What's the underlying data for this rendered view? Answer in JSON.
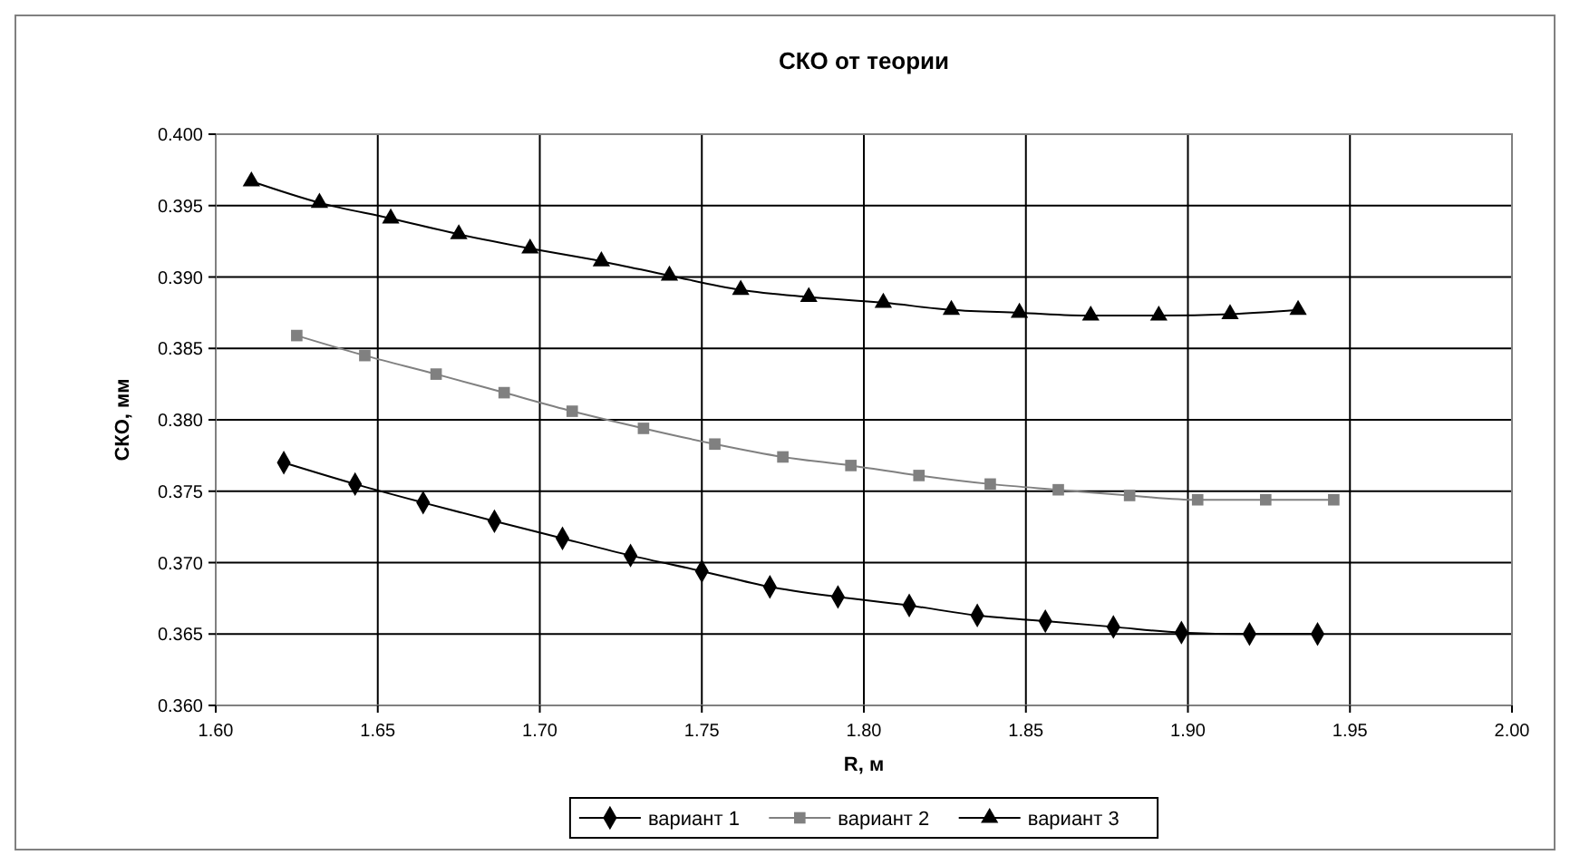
{
  "chart_data": {
    "type": "line",
    "title": "СКО от теории",
    "xlabel": "R, м",
    "ylabel": "СКО, мм",
    "xlim": [
      1.6,
      2.0
    ],
    "xticks": [
      {
        "value": 1.6,
        "label": "1.60"
      },
      {
        "value": 1.65,
        "label": "1.65"
      },
      {
        "value": 1.7,
        "label": "1.70"
      },
      {
        "value": 1.75,
        "label": "1.75"
      },
      {
        "value": 1.8,
        "label": "1.80"
      },
      {
        "value": 1.85,
        "label": "1.85"
      },
      {
        "value": 1.9,
        "label": "1.90"
      },
      {
        "value": 1.95,
        "label": "1.95"
      },
      {
        "value": 2.0,
        "label": "2.00"
      }
    ],
    "ylim": [
      0.36,
      0.4
    ],
    "yticks": [
      {
        "value": 0.36,
        "label": "0.360"
      },
      {
        "value": 0.365,
        "label": "0.365"
      },
      {
        "value": 0.37,
        "label": "0.370"
      },
      {
        "value": 0.375,
        "label": "0.375"
      },
      {
        "value": 0.38,
        "label": "0.380"
      },
      {
        "value": 0.385,
        "label": "0.385"
      },
      {
        "value": 0.39,
        "label": "0.390"
      },
      {
        "value": 0.395,
        "label": "0.395"
      },
      {
        "value": 0.4,
        "label": "0.400"
      }
    ],
    "grid": true,
    "legend": "bottom",
    "line_style": "solid",
    "series": [
      {
        "name": "вариант 1",
        "color": "#000000",
        "marker": "diamond",
        "x": [
          1.621,
          1.643,
          1.664,
          1.686,
          1.707,
          1.728,
          1.75,
          1.771,
          1.792,
          1.814,
          1.835,
          1.856,
          1.877,
          1.898,
          1.919,
          1.94
        ],
        "values": [
          0.377,
          0.3755,
          0.3742,
          0.3729,
          0.3717,
          0.3705,
          0.3694,
          0.3683,
          0.3676,
          0.367,
          0.3663,
          0.3659,
          0.3655,
          0.3651,
          0.365,
          0.365
        ]
      },
      {
        "name": "вариант 2",
        "color": "#808080",
        "marker": "square",
        "x": [
          1.625,
          1.646,
          1.668,
          1.689,
          1.71,
          1.732,
          1.754,
          1.775,
          1.796,
          1.817,
          1.839,
          1.86,
          1.882,
          1.903,
          1.924,
          1.945
        ],
        "values": [
          0.3859,
          0.3845,
          0.3832,
          0.3819,
          0.3806,
          0.3794,
          0.3783,
          0.3774,
          0.3768,
          0.3761,
          0.3755,
          0.3751,
          0.3747,
          0.3744,
          0.3744,
          0.3744
        ]
      },
      {
        "name": "вариант 3",
        "color": "#000000",
        "marker": "triangle",
        "x": [
          1.611,
          1.632,
          1.654,
          1.675,
          1.697,
          1.719,
          1.74,
          1.762,
          1.783,
          1.806,
          1.827,
          1.848,
          1.87,
          1.891,
          1.913,
          1.934
        ],
        "values": [
          0.3967,
          0.3952,
          0.3941,
          0.393,
          0.392,
          0.3911,
          0.3901,
          0.3891,
          0.3886,
          0.3882,
          0.3877,
          0.3875,
          0.3873,
          0.3873,
          0.3874,
          0.3877
        ]
      }
    ]
  }
}
